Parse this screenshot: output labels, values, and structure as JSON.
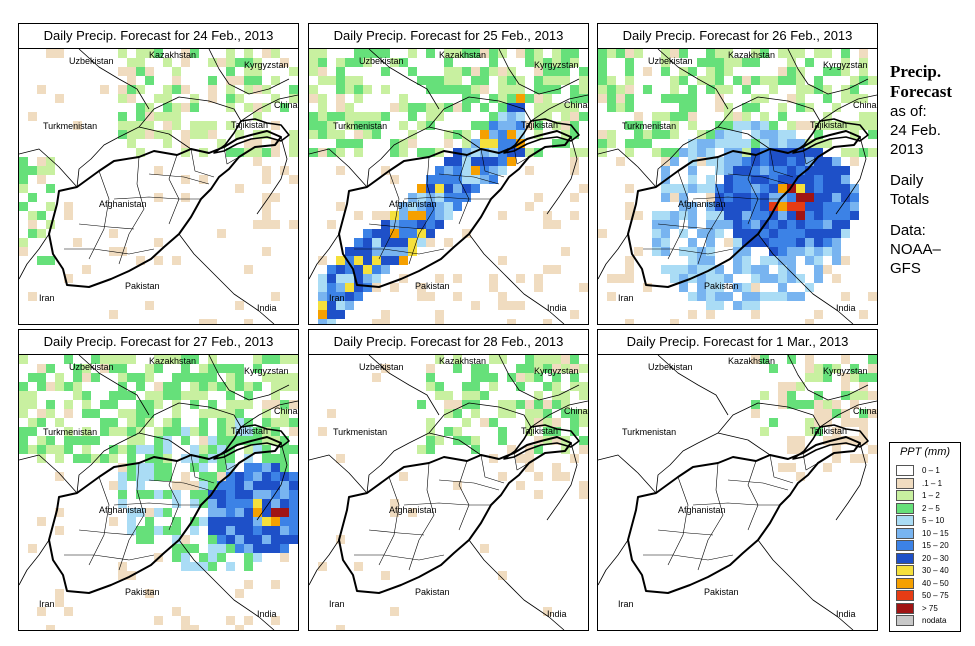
{
  "panels": [
    {
      "title": "Daily Precip. Forecast for  24 Feb., 2013",
      "intensity": 0
    },
    {
      "title": "Daily Precip. Forecast for  25 Feb., 2013",
      "intensity": 1
    },
    {
      "title": "Daily Precip. Forecast for  26 Feb., 2013",
      "intensity": 2
    },
    {
      "title": "Daily Precip. Forecast for  27 Feb., 2013",
      "intensity": 3
    },
    {
      "title": "Daily Precip. Forecast for  28 Feb., 2013",
      "intensity": 4
    },
    {
      "title": "Daily Precip. Forecast for  1 Mar., 2013",
      "intensity": 5
    }
  ],
  "countries": {
    "uzbekistan": "Uzbekistan",
    "kazakhstan": "Kazakhstan",
    "kyrgyzstan": "Kyrgyzstan",
    "china": "China",
    "turkmenistan": "Turkmenistan",
    "tajikistan": "Tajikistan",
    "afghanistan": "Afghanistan",
    "pakistan": "Pakistan",
    "iran": "Iran",
    "india": "India"
  },
  "side": {
    "title_line1": "Precip.",
    "title_line2": "Forecast",
    "asof_line1": "as of:",
    "asof_line2": "24 Feb.",
    "asof_line3": "2013",
    "totals_line1": "Daily",
    "totals_line2": "Totals",
    "data_line1": "Data:",
    "data_line2": "NOAA–",
    "data_line3": "GFS"
  },
  "legend": {
    "title": "PPT (mm)",
    "classes": [
      {
        "label": "0 – 1",
        "color": "#ffffff"
      },
      {
        "label": ".1 – 1",
        "color": "#f0dcc0"
      },
      {
        "label": "1 – 2",
        "color": "#c8f0a0"
      },
      {
        "label": "2 – 5",
        "color": "#66e07a"
      },
      {
        "label": "5 – 10",
        "color": "#aadcf5"
      },
      {
        "label": "10 – 15",
        "color": "#78b4f0"
      },
      {
        "label": "15 – 20",
        "color": "#3c82e6"
      },
      {
        "label": "20 – 30",
        "color": "#1e50c8"
      },
      {
        "label": "30 – 40",
        "color": "#f5e03c"
      },
      {
        "label": "40 – 50",
        "color": "#f5a000"
      },
      {
        "label": "50 – 75",
        "color": "#e63c14"
      },
      {
        "label": "> 75",
        "color": "#a01414"
      },
      {
        "label": "nodata",
        "color": "#c8c8c8"
      }
    ]
  }
}
